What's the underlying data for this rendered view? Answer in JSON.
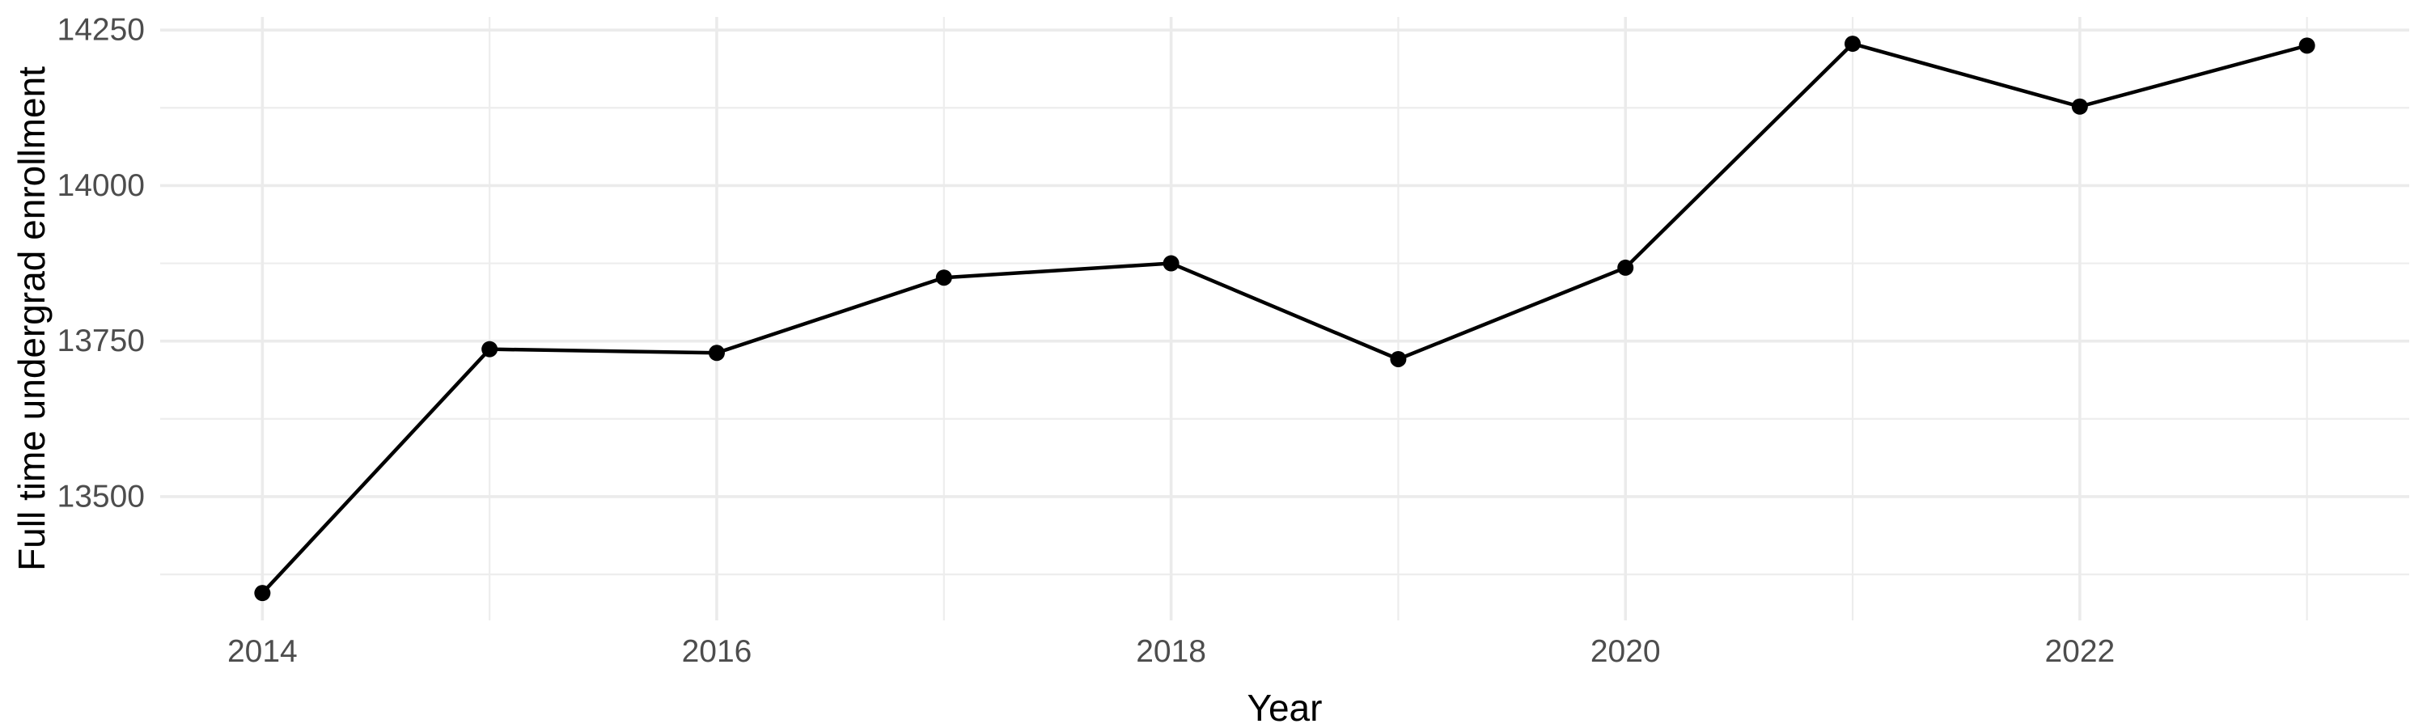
{
  "chart_data": {
    "type": "line",
    "title": "",
    "xlabel": "Year",
    "ylabel": "Full time undergrad enrollment",
    "x": [
      2014,
      2015,
      2016,
      2017,
      2018,
      2019,
      2020,
      2021,
      2022,
      2023
    ],
    "values": [
      13345,
      13737,
      13731,
      13852,
      13875,
      13721,
      13868,
      14228,
      14127,
      14225
    ],
    "x_major_ticks": [
      2014,
      2016,
      2018,
      2020,
      2022
    ],
    "x_minor_gridlines": [
      2015,
      2017,
      2019,
      2021,
      2023
    ],
    "y_major_ticks": [
      13500,
      13750,
      14000,
      14250
    ],
    "y_minor_gridlines": [
      13375,
      13625,
      13875,
      14125
    ],
    "xlim": [
      2013.55,
      2023.45
    ],
    "ylim": [
      13301,
      14271
    ],
    "grid": true,
    "legend": "none",
    "marker": "filled-circle",
    "colors": {
      "line": "#000000",
      "point": "#000000",
      "grid_major": "#EBEBEB",
      "grid_minor": "#EDEDED",
      "tick_label": "#4D4D4D",
      "axis_title": "#000000",
      "background": "#FFFFFF"
    }
  }
}
